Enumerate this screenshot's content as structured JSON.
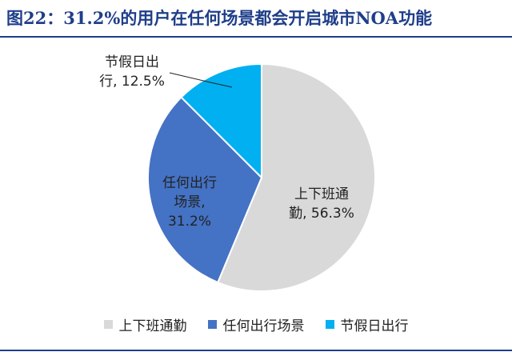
{
  "title": "图22：31.2%的用户在任何场景都会开启城市NOA功能",
  "chart_data": {
    "type": "pie",
    "title": "图22：31.2%的用户在任何场景都会开启城市NOA功能",
    "slices": [
      {
        "name": "上下班通勤",
        "value": 56.3,
        "color": "#d9d9d9",
        "label_lines": [
          "上下班通",
          "勤, 56.3%"
        ]
      },
      {
        "name": "任何出行场景",
        "value": 31.2,
        "color": "#4472c4",
        "label_lines": [
          "任何出行",
          "场景,",
          "31.2%"
        ]
      },
      {
        "name": "节假日出行",
        "value": 12.5,
        "color": "#00b0f0",
        "label_lines": [
          "节假日出",
          "行, 12.5%"
        ]
      }
    ],
    "legend_position": "bottom"
  }
}
